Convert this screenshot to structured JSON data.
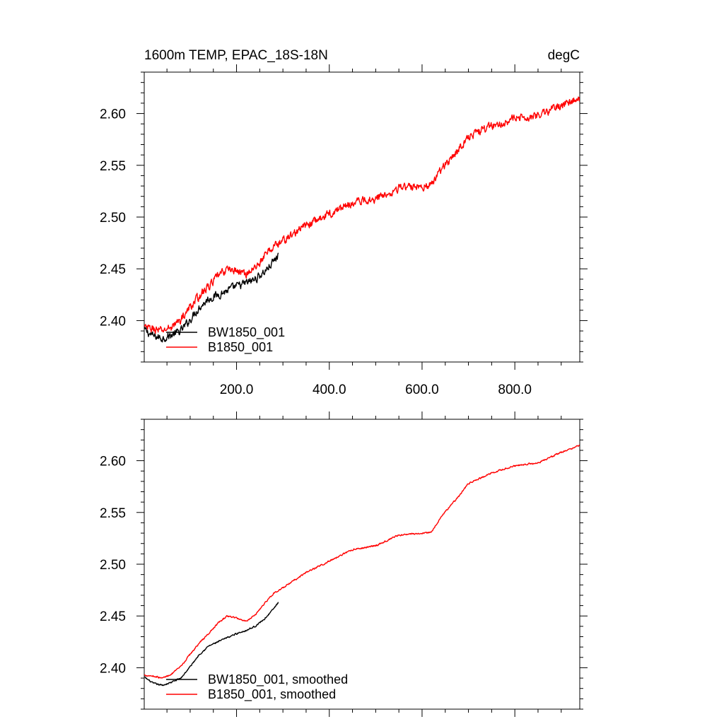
{
  "figure": {
    "title_left": "1600m TEMP, EPAC_18S-18N",
    "title_right": "degC"
  },
  "chart_data": [
    {
      "type": "line",
      "title": "1600m TEMP, EPAC_18S-18N",
      "units": "degC",
      "xlim": [
        1,
        940
      ],
      "ylim": [
        2.36,
        2.64
      ],
      "xticks": [
        200,
        400,
        600,
        800
      ],
      "xtick_labels": [
        "200.0",
        "400.0",
        "600.0",
        "800.0"
      ],
      "yticks": [
        2.4,
        2.45,
        2.5,
        2.55,
        2.6
      ],
      "ytick_labels": [
        "2.40",
        "2.45",
        "2.50",
        "2.55",
        "2.60"
      ],
      "legend_position": "bottom-left",
      "grid": false,
      "series": [
        {
          "name": "BW1850_001",
          "color": "#000000",
          "noise": 0.006,
          "x": [
            1,
            20,
            40,
            60,
            80,
            100,
            120,
            140,
            160,
            180,
            200,
            220,
            240,
            260,
            280,
            290
          ],
          "y": [
            2.391,
            2.385,
            2.383,
            2.386,
            2.39,
            2.401,
            2.413,
            2.421,
            2.425,
            2.429,
            2.433,
            2.436,
            2.44,
            2.447,
            2.457,
            2.463
          ]
        },
        {
          "name": "B1850_001",
          "color": "#ff0000",
          "noise": 0.006,
          "x": [
            1,
            20,
            40,
            60,
            80,
            100,
            120,
            140,
            160,
            180,
            200,
            220,
            240,
            260,
            280,
            300,
            350,
            400,
            450,
            500,
            550,
            600,
            620,
            640,
            660,
            680,
            700,
            750,
            800,
            850,
            900,
            940
          ],
          "y": [
            2.393,
            2.392,
            2.39,
            2.394,
            2.401,
            2.413,
            2.424,
            2.433,
            2.443,
            2.45,
            2.448,
            2.445,
            2.451,
            2.462,
            2.472,
            2.477,
            2.492,
            2.503,
            2.514,
            2.518,
            2.528,
            2.53,
            2.531,
            2.545,
            2.556,
            2.566,
            2.578,
            2.588,
            2.595,
            2.598,
            2.608,
            2.615
          ]
        }
      ]
    },
    {
      "type": "line",
      "xlim": [
        1,
        940
      ],
      "ylim": [
        2.36,
        2.64
      ],
      "xticks": [
        200,
        400,
        600,
        800
      ],
      "yticks": [
        2.4,
        2.45,
        2.5,
        2.55,
        2.6
      ],
      "ytick_labels": [
        "2.40",
        "2.45",
        "2.50",
        "2.55",
        "2.60"
      ],
      "legend_position": "bottom-left",
      "grid": false,
      "series": [
        {
          "name": "BW1850_001, smoothed",
          "color": "#000000",
          "noise": 0.0012,
          "x": [
            1,
            20,
            40,
            60,
            80,
            100,
            120,
            140,
            160,
            180,
            200,
            220,
            240,
            260,
            280,
            290
          ],
          "y": [
            2.391,
            2.385,
            2.383,
            2.386,
            2.39,
            2.401,
            2.413,
            2.421,
            2.425,
            2.429,
            2.433,
            2.436,
            2.44,
            2.447,
            2.457,
            2.463
          ]
        },
        {
          "name": "B1850_001, smoothed",
          "color": "#ff0000",
          "noise": 0.0012,
          "x": [
            1,
            20,
            40,
            60,
            80,
            100,
            120,
            140,
            160,
            180,
            200,
            220,
            240,
            260,
            280,
            300,
            350,
            400,
            450,
            500,
            550,
            600,
            620,
            640,
            660,
            680,
            700,
            750,
            800,
            850,
            900,
            940
          ],
          "y": [
            2.393,
            2.392,
            2.39,
            2.394,
            2.401,
            2.413,
            2.424,
            2.433,
            2.443,
            2.45,
            2.448,
            2.445,
            2.451,
            2.462,
            2.472,
            2.477,
            2.492,
            2.503,
            2.514,
            2.518,
            2.528,
            2.53,
            2.531,
            2.545,
            2.556,
            2.566,
            2.578,
            2.588,
            2.595,
            2.598,
            2.608,
            2.615
          ]
        }
      ]
    }
  ]
}
